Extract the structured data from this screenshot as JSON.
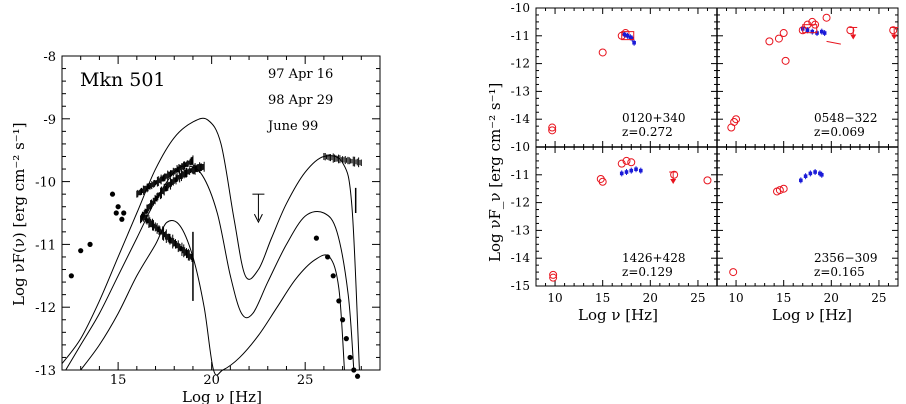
{
  "left_panel": {
    "source": "Mkn 501",
    "epochs": [
      "97 Apr 16",
      "98 Apr 29",
      "June 99"
    ],
    "xlabel": "Log ν [Hz]",
    "ylabel": "Log νF(ν) [erg cm⁻² s⁻¹]"
  },
  "right_panel": {
    "xlabel": "Log ν [Hz]",
    "ylabel": "Log νF_ν [erg cm⁻² s⁻¹]",
    "panels": [
      {
        "name": "0120+340",
        "z": "z=0.272"
      },
      {
        "name": "0548−322",
        "z": "z=0.069"
      },
      {
        "name": "1426+428",
        "z": "z=0.129"
      },
      {
        "name": "2356−309",
        "z": "z=0.165"
      }
    ]
  },
  "colors": {
    "red": "#e8141e",
    "blue": "#1a1ad8",
    "black": "#000000"
  },
  "chart_data": [
    {
      "type": "scatter",
      "title": "Mkn 501",
      "xlabel": "Log ν [Hz]",
      "ylabel": "Log νF(ν) [erg cm⁻² s⁻¹]",
      "xlim": [
        12,
        29
      ],
      "ylim": [
        -13,
        -8
      ],
      "xticks": [
        15,
        20,
        25
      ],
      "yticks": [
        -13,
        -12,
        -11,
        -10,
        -9,
        -8
      ],
      "series": [
        {
          "name": "97 Apr 16",
          "model": true,
          "x": [
            12,
            13,
            14,
            15,
            16,
            17,
            18,
            19,
            19.8,
            20.5,
            21.2,
            21.8,
            22.5,
            23.2,
            24,
            25,
            26,
            27,
            27.5,
            27.9
          ],
          "y": [
            -12.9,
            -12.5,
            -11.9,
            -11.2,
            -10.5,
            -9.8,
            -9.3,
            -9.05,
            -9.02,
            -9.4,
            -10.6,
            -11.5,
            -11.4,
            -10.9,
            -10.35,
            -9.85,
            -9.6,
            -9.7,
            -10.4,
            -13.0
          ]
        },
        {
          "name": "98 Apr 29",
          "model": true,
          "x": [
            12.2,
            13,
            14,
            15,
            16,
            17,
            18,
            18.7,
            19.5,
            20.3,
            21,
            21.6,
            22.2,
            23,
            24,
            25,
            26,
            26.7,
            27.3,
            27.6
          ],
          "y": [
            -13.0,
            -12.6,
            -12.1,
            -11.5,
            -10.9,
            -10.3,
            -9.85,
            -9.75,
            -9.9,
            -10.5,
            -11.5,
            -12.1,
            -12.1,
            -11.6,
            -11.0,
            -10.55,
            -10.5,
            -10.8,
            -11.8,
            -13.0
          ]
        },
        {
          "name": "June 99",
          "model": true,
          "x": [
            13,
            14,
            15,
            16,
            17,
            17.6,
            18.3,
            19,
            19.6,
            20.1,
            20.6,
            21.5,
            22.5,
            23.5,
            24.5,
            25.5,
            26.3,
            26.8,
            27.1
          ],
          "y": [
            -13.0,
            -12.6,
            -12.1,
            -11.5,
            -11.0,
            -10.65,
            -10.7,
            -11.2,
            -12.0,
            -13.0,
            -13.0,
            -12.8,
            -12.45,
            -12.0,
            -11.55,
            -11.25,
            -11.2,
            -11.7,
            -13.0
          ]
        },
        {
          "name": "radio-optical points",
          "x": [
            12.5,
            13.0,
            13.5,
            14.7,
            14.9,
            15.0,
            15.2,
            15.3
          ],
          "y": [
            -11.5,
            -11.1,
            -11.0,
            -10.2,
            -10.5,
            -10.4,
            -10.6,
            -10.5
          ]
        },
        {
          "name": "TeV points",
          "x": [
            25.6,
            26.2,
            26.5,
            26.8,
            27.0,
            27.2,
            27.4,
            27.6,
            27.8
          ],
          "y": [
            -10.9,
            -11.2,
            -11.5,
            -11.9,
            -12.2,
            -12.5,
            -12.8,
            -13.0,
            -13.1
          ]
        },
        {
          "name": "upper limit",
          "x": [
            22.5
          ],
          "y": [
            -10.2
          ]
        }
      ]
    },
    {
      "type": "scatter",
      "layout": "2x2 grid",
      "xlabel": "Log ν [Hz]",
      "ylabel": "Log νF_ν [erg cm⁻² s⁻¹]",
      "xlim": [
        8,
        27
      ],
      "ylim": [
        -15,
        -10
      ],
      "xticks": [
        10,
        15,
        20,
        25
      ],
      "yticks": [
        -15,
        -14,
        -13,
        -12,
        -11,
        -10
      ],
      "panels": [
        {
          "name": "0120+340",
          "z": 0.272,
          "red": {
            "x": [
              9.7,
              9.7,
              15.0,
              17.0,
              17.4
            ],
            "y": [
              -14.3,
              -14.4,
              -11.6,
              -11.0,
              -10.9
            ]
          },
          "blue": {
            "x": [
              17.3,
              17.6,
              17.9,
              18.1,
              18.3
            ],
            "y": [
              -10.95,
              -11.0,
              -11.05,
              -11.1,
              -11.25
            ]
          }
        },
        {
          "name": "0548−322",
          "z": 0.069,
          "red": {
            "x": [
              9.5,
              9.8,
              10.0,
              13.5,
              14.5,
              15.0,
              15.2,
              17.0,
              17.5,
              18.0,
              18.3,
              19.5,
              22.0,
              26.5
            ],
            "y": [
              -14.3,
              -14.1,
              -14.0,
              -11.2,
              -11.1,
              -10.9,
              -11.9,
              -10.8,
              -10.6,
              -10.5,
              -10.6,
              -10.35,
              -10.8,
              -10.8
            ]
          },
          "blue": {
            "x": [
              17.0,
              17.5,
              18.0,
              18.5,
              19.0,
              19.3
            ],
            "y": [
              -10.75,
              -10.8,
              -10.85,
              -10.9,
              -10.85,
              -10.9
            ]
          }
        },
        {
          "name": "1426+428",
          "z": 0.129,
          "red": {
            "x": [
              9.8,
              9.8,
              14.8,
              15.0,
              17.0,
              17.5,
              18.0,
              22.5,
              26.0
            ],
            "y": [
              -14.6,
              -14.7,
              -11.15,
              -11.25,
              -10.6,
              -10.5,
              -10.55,
              -11.0,
              -11.2
            ]
          },
          "blue": {
            "x": [
              17.0,
              17.5,
              18.0,
              18.5,
              19.0
            ],
            "y": [
              -10.95,
              -10.9,
              -10.85,
              -10.8,
              -10.85
            ]
          }
        },
        {
          "name": "2356−309",
          "z": 0.165,
          "red": {
            "x": [
              9.7,
              14.3,
              14.6,
              15.0
            ],
            "y": [
              -14.5,
              -11.6,
              -11.55,
              -11.5
            ]
          },
          "blue": {
            "x": [
              16.8,
              17.3,
              17.8,
              18.3,
              18.8,
              19.0
            ],
            "y": [
              -11.2,
              -11.05,
              -10.95,
              -10.9,
              -10.95,
              -11.0
            ]
          }
        }
      ]
    }
  ]
}
